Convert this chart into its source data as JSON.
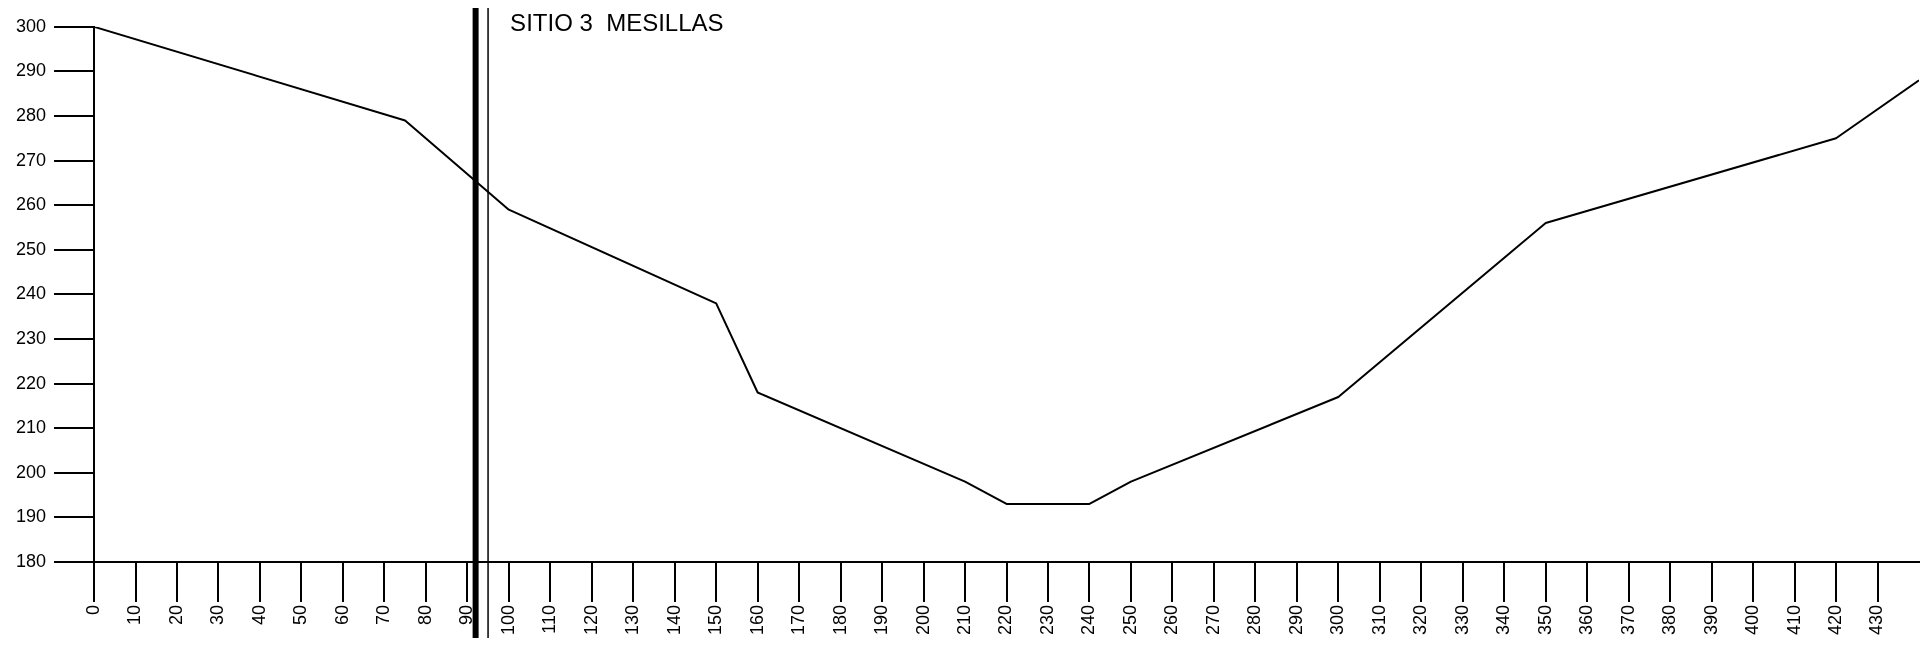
{
  "chart_data": {
    "type": "line",
    "title": "SITIO 3  MESILLAS",
    "series": [
      {
        "color": "#000000",
        "x": [
          0,
          75,
          100,
          150,
          160,
          210,
          220,
          240,
          250,
          300,
          350,
          420,
          440
        ],
        "values": [
          300,
          279,
          259,
          238,
          218,
          198,
          193,
          193,
          198,
          217,
          256,
          275,
          288
        ]
      }
    ],
    "xlim": [
      0,
      440
    ],
    "xticks": [
      0,
      10,
      20,
      30,
      40,
      50,
      60,
      70,
      80,
      90,
      100,
      110,
      120,
      130,
      140,
      150,
      160,
      170,
      180,
      190,
      200,
      210,
      220,
      230,
      240,
      250,
      260,
      270,
      280,
      290,
      300,
      310,
      320,
      330,
      340,
      350,
      360,
      370,
      380,
      390,
      400,
      410,
      420,
      430
    ],
    "ylim": [
      180,
      300
    ],
    "yticks": [
      180,
      190,
      200,
      210,
      220,
      230,
      240,
      250,
      260,
      270,
      280,
      290,
      300
    ],
    "ref_lines": [
      {
        "axis": "x",
        "value": 92,
        "color": "#000000"
      },
      {
        "axis": "x",
        "value": 95,
        "color": "#000000"
      }
    ],
    "grid": false,
    "legend": false,
    "marker": "none",
    "line_style": "solid"
  }
}
